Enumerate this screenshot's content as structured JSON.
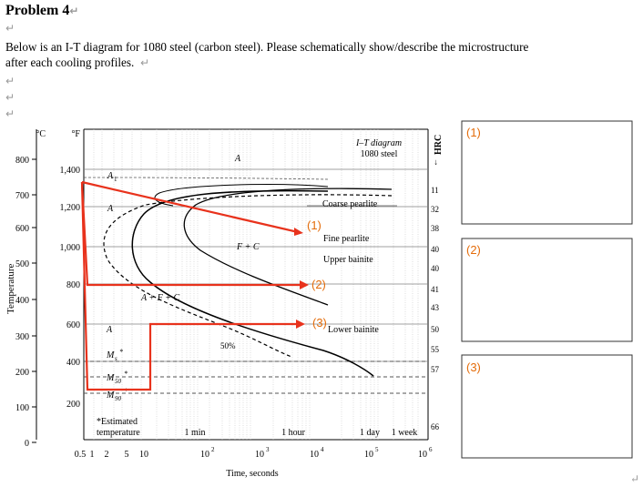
{
  "doc": {
    "title": "Problem 4",
    "paragraph_line1": "Below is an I-T diagram for 1080 steel (carbon steel). Please schematically show/describe the microstructure",
    "paragraph_line2": "after each cooling profiles.",
    "return_mark": "↵"
  },
  "diagram": {
    "title_line1": "I–T diagram",
    "title_line2": "1080 steel",
    "hrc_label": "HRC",
    "y_left_title": "Temperature",
    "unit_c": "°C",
    "unit_f": "°F",
    "x_title": "Time, seconds",
    "c_ticks": [
      "800",
      "700",
      "600",
      "500",
      "400",
      "300",
      "200",
      "100",
      "0"
    ],
    "f_ticks": [
      "1,400",
      "1,200",
      "1,000",
      "800",
      "600",
      "400",
      "200"
    ],
    "x_ticks": [
      "0.5",
      "1",
      "2",
      "5",
      "10",
      "10",
      "10",
      "10",
      "10",
      "10"
    ],
    "x_exps": [
      "2",
      "3",
      "4",
      "5",
      "6"
    ],
    "hrc_ticks": [
      "11",
      "32",
      "38",
      "40",
      "40",
      "41",
      "43",
      "50",
      "55",
      "57",
      "66"
    ],
    "time_marks": [
      "1 min",
      "1 hour",
      "1 day",
      "1 week"
    ],
    "labels": {
      "a_top": "A",
      "a1": "A",
      "a1_sub": "1",
      "a_left1": "A",
      "a_left2": "A",
      "f_plus_c": "F + C",
      "a_f_c": "A + F + C",
      "fifty": "50%",
      "coarse": "Coarse pearlite",
      "fine": "Fine pearlite",
      "upper": "Upper bainite",
      "lower": "Lower bainite",
      "ms": "M",
      "ms_sub": "s",
      "m50": "M",
      "m50_sub": "50",
      "m90": "M",
      "m90_sub": "90",
      "star": "*",
      "estimated_line1": "*Estimated",
      "estimated_line2": "temperature"
    },
    "profile_labels": [
      "(1)",
      "(2)",
      "(3)"
    ]
  },
  "answer_boxes": [
    "(1)",
    "(2)",
    "(3)"
  ],
  "colors": {
    "profile_red": "#e8321c",
    "label_orange": "#e46c0a"
  }
}
